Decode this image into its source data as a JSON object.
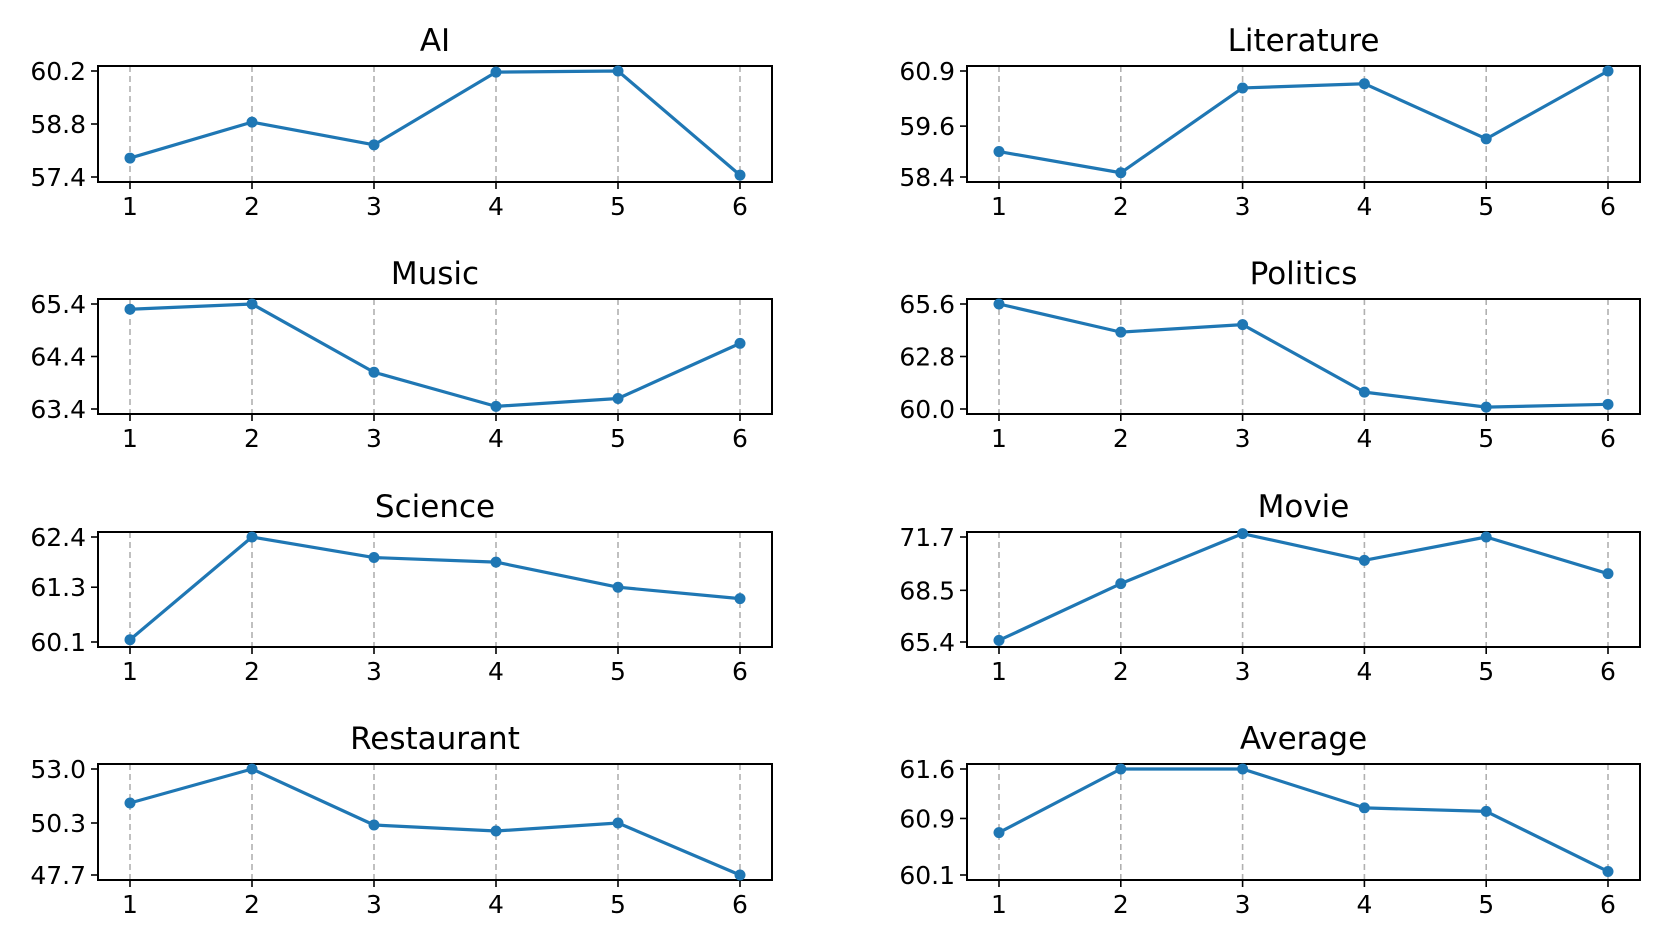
{
  "colors": {
    "series": "#1f77b4",
    "grid": "#b0b0b0",
    "axis": "#000000"
  },
  "chart_data": [
    {
      "type": "line",
      "title": "AI",
      "x": [
        1,
        2,
        3,
        4,
        5,
        6
      ],
      "values": [
        57.9,
        58.85,
        58.25,
        60.17,
        60.2,
        57.45
      ],
      "ylim": [
        57.4,
        60.2
      ],
      "yticks": [
        "57.4",
        "58.8",
        "60.2"
      ],
      "xticks": [
        "1",
        "2",
        "3",
        "4",
        "5",
        "6"
      ],
      "grid": "x-dashed",
      "xlabel": "",
      "ylabel": ""
    },
    {
      "type": "line",
      "title": "Literature",
      "x": [
        1,
        2,
        3,
        4,
        5,
        6
      ],
      "values": [
        59.0,
        58.5,
        60.5,
        60.6,
        59.3,
        60.9
      ],
      "ylim": [
        58.4,
        60.9
      ],
      "yticks": [
        "58.4",
        "59.6",
        "60.9"
      ],
      "xticks": [
        "1",
        "2",
        "3",
        "4",
        "5",
        "6"
      ],
      "grid": "x-dashed",
      "xlabel": "",
      "ylabel": ""
    },
    {
      "type": "line",
      "title": "Music",
      "x": [
        1,
        2,
        3,
        4,
        5,
        6
      ],
      "values": [
        65.3,
        65.4,
        64.1,
        63.45,
        63.6,
        64.65
      ],
      "ylim": [
        63.4,
        65.4
      ],
      "yticks": [
        "63.4",
        "64.4",
        "65.4"
      ],
      "xticks": [
        "1",
        "2",
        "3",
        "4",
        "5",
        "6"
      ],
      "grid": "x-dashed",
      "xlabel": "",
      "ylabel": ""
    },
    {
      "type": "line",
      "title": "Politics",
      "x": [
        1,
        2,
        3,
        4,
        5,
        6
      ],
      "values": [
        65.6,
        64.1,
        64.5,
        60.9,
        60.1,
        60.25
      ],
      "ylim": [
        60.0,
        65.6
      ],
      "yticks": [
        "60.0",
        "62.8",
        "65.6"
      ],
      "xticks": [
        "1",
        "2",
        "3",
        "4",
        "5",
        "6"
      ],
      "grid": "x-dashed",
      "xlabel": "",
      "ylabel": ""
    },
    {
      "type": "line",
      "title": "Science",
      "x": [
        1,
        2,
        3,
        4,
        5,
        6
      ],
      "values": [
        60.15,
        62.4,
        61.95,
        61.85,
        61.3,
        61.05
      ],
      "ylim": [
        60.1,
        62.4
      ],
      "yticks": [
        "60.1",
        "61.3",
        "62.4"
      ],
      "xticks": [
        "1",
        "2",
        "3",
        "4",
        "5",
        "6"
      ],
      "grid": "x-dashed",
      "xlabel": "",
      "ylabel": ""
    },
    {
      "type": "line",
      "title": "Movie",
      "x": [
        1,
        2,
        3,
        4,
        5,
        6
      ],
      "values": [
        65.5,
        68.9,
        71.9,
        70.3,
        71.7,
        69.5
      ],
      "ylim": [
        65.4,
        71.7
      ],
      "yticks": [
        "65.4",
        "68.5",
        "71.7"
      ],
      "xticks": [
        "1",
        "2",
        "3",
        "4",
        "5",
        "6"
      ],
      "grid": "x-dashed",
      "xlabel": "",
      "ylabel": ""
    },
    {
      "type": "line",
      "title": "Restaurant",
      "x": [
        1,
        2,
        3,
        4,
        5,
        6
      ],
      "values": [
        51.3,
        53.0,
        50.2,
        49.9,
        50.3,
        47.7
      ],
      "ylim": [
        47.7,
        53.0
      ],
      "yticks": [
        "47.7",
        "50.3",
        "53.0"
      ],
      "xticks": [
        "1",
        "2",
        "3",
        "4",
        "5",
        "6"
      ],
      "grid": "x-dashed",
      "xlabel": "",
      "ylabel": ""
    },
    {
      "type": "line",
      "title": "Average",
      "x": [
        1,
        2,
        3,
        4,
        5,
        6
      ],
      "values": [
        60.7,
        61.6,
        61.6,
        61.05,
        61.0,
        60.15
      ],
      "ylim": [
        60.1,
        61.6
      ],
      "yticks": [
        "60.1",
        "60.9",
        "61.6"
      ],
      "xticks": [
        "1",
        "2",
        "3",
        "4",
        "5",
        "6"
      ],
      "grid": "x-dashed",
      "xlabel": "",
      "ylabel": ""
    }
  ]
}
